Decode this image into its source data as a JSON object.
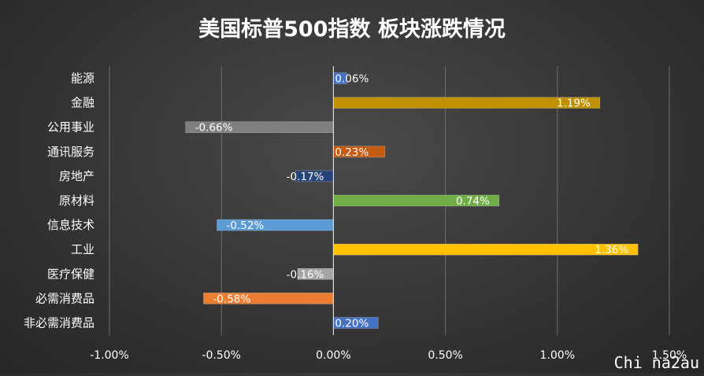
{
  "chart_data": {
    "type": "bar",
    "orientation": "horizontal",
    "title": "美国标普500指数 板块涨跌情况",
    "xlabel": "",
    "ylabel": "",
    "categories": [
      "能源",
      "金融",
      "公用事业",
      "通讯服务",
      "房地产",
      "原材料",
      "信息技术",
      "工业",
      "医疗保健",
      "必需消费品",
      "非必需消费品"
    ],
    "values": [
      0.06,
      1.19,
      -0.66,
      0.23,
      -0.17,
      0.74,
      -0.52,
      1.36,
      -0.16,
      -0.58,
      0.2
    ],
    "value_labels": [
      "0.06%",
      "1.19%",
      "-0.66%",
      "0.23%",
      "-0.17%",
      "0.74%",
      "-0.52%",
      "1.36%",
      "-0.16%",
      "-0.58%",
      "0.20%"
    ],
    "colors": [
      "#4472C4",
      "#BF9000",
      "#7F7F7F",
      "#C55A11",
      "#264478",
      "#70AD47",
      "#5B9BD5",
      "#FFC000",
      "#A5A5A5",
      "#ED7D31",
      "#4472C4"
    ],
    "xlim": [
      -1.0,
      1.5
    ],
    "x_ticks": [
      -1.0,
      -0.5,
      0.0,
      0.5,
      1.0,
      1.5
    ],
    "x_tick_labels": [
      "-1.00%",
      "-0.50%",
      "0.00%",
      "0.50%",
      "1.00%",
      "1.50%"
    ],
    "grid": true,
    "legend": "none"
  },
  "watermark": "Chi na2au"
}
